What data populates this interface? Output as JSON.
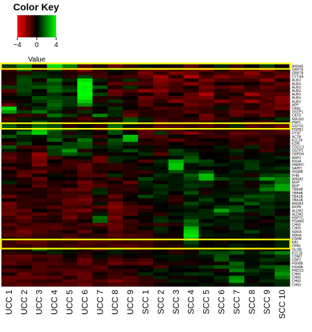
{
  "chart_data": {
    "type": "heatmap",
    "title": "",
    "color_key": {
      "title": "Color Key",
      "xlabel": "Value",
      "ticks": [
        "−4",
        "0",
        "4"
      ],
      "tick_values": [
        -4,
        0,
        4
      ],
      "low_color": "#ff0000",
      "mid_color": "#000000",
      "high_color": "#00ff00"
    },
    "columns": [
      "UCC 1",
      "UCC 2",
      "UCC 3",
      "UCC 4",
      "UCC 5",
      "UCC 6",
      "UCC 7",
      "UCC 8",
      "UCC 9",
      "SCC 1",
      "SCC 2",
      "SCC 3",
      "SCC 4",
      "SCC 5",
      "SCC 6",
      "SCC 7",
      "SCC 8",
      "SCC 9",
      "SCC 10"
    ],
    "rows": [
      "ANXA5",
      "GRP78",
      "GRP78",
      "CYTSA",
      "ALBU",
      "ALBU",
      "ALBU",
      "ALBU",
      "ALBU",
      "ALBU",
      "ALBU",
      "AFP",
      "UBA1",
      "GSTP1",
      "CATD",
      "NDUS3",
      "PRP1",
      "GSTO1",
      "HSPB1",
      "DYST",
      "ACTB",
      "K1C19",
      "EZRI",
      "COCC2",
      "GSTP1",
      "G6PDH",
      "ARP3",
      "RSSA",
      "HNRPC",
      "SAHH",
      "HS90B",
      "IF4B",
      "ANXA2",
      "MVP",
      "MVP",
      "TBB4B",
      "TBB4B",
      "TBA1B",
      "TBA1B",
      "ANXA3",
      "RFPB",
      "ALDH2",
      "ALDH2",
      "HSP7C",
      "PGAM2",
      "CH60",
      "CH60",
      "NDKA",
      "NDKA",
      "DSHB",
      "EB1",
      "OPA1",
      "GLOB",
      "K1C16",
      "COMT",
      "USP2",
      "HS90B",
      "HS90B",
      "PRDX3",
      "CH60",
      "CH60",
      "CH60",
      "CH60"
    ],
    "values": [
      [
        0.9,
        2.0,
        0.0,
        3.5,
        2.0,
        -1.2,
        -0.5,
        -1.6,
        -0.8,
        0.3,
        -0.2,
        -0.4,
        -1.4,
        -0.3,
        0.6,
        -0.9,
        0.0,
        1.0,
        -0.2
      ],
      [
        -1.2,
        1.5,
        -0.6,
        1.2,
        -1.1,
        -2.4,
        -0.5,
        0.3,
        -0.3,
        -1.3,
        -1.7,
        -0.8,
        -1.5,
        -1.9,
        -0.3,
        -1.6,
        -1.2,
        -2.4,
        -0.5
      ],
      [
        -0.4,
        -0.7,
        0.6,
        0.2,
        -0.5,
        -0.9,
        -0.9,
        -0.1,
        -0.6,
        -1.9,
        -0.8,
        -2.0,
        -1.6,
        -0.6,
        -1.0,
        -1.1,
        -2.2,
        -0.8,
        -1.3
      ],
      [
        -0.4,
        0.9,
        0.8,
        0.5,
        -0.6,
        1.0,
        -1.1,
        -0.8,
        -1.0,
        -1.4,
        -2.5,
        -0.7,
        -2.8,
        -1.1,
        -2.0,
        -1.4,
        -1.6,
        -1.1,
        -1.8
      ],
      [
        -0.5,
        1.2,
        -0.3,
        1.8,
        0.6,
        3.5,
        0.5,
        -0.6,
        0.7,
        -0.9,
        -2.2,
        -1.7,
        -0.6,
        -1.9,
        -1.1,
        -1.0,
        -0.9,
        -2.2,
        -0.4
      ],
      [
        -0.7,
        1.1,
        0.7,
        1.2,
        -0.3,
        4.0,
        -0.2,
        -1.4,
        -1.3,
        -1.2,
        -1.8,
        -1.1,
        -2.1,
        -1.2,
        -0.2,
        -0.4,
        -0.2,
        -0.8,
        -1.6
      ],
      [
        0.9,
        1.0,
        1.3,
        1.6,
        0.7,
        3.8,
        1.4,
        -0.5,
        0.7,
        -0.5,
        -1.5,
        -1.0,
        -0.4,
        -1.8,
        -1.2,
        -1.7,
        -0.7,
        -1.5,
        -1.1
      ],
      [
        -1.3,
        1.1,
        0.1,
        1.6,
        1.1,
        3.9,
        -0.1,
        -1.6,
        -1.1,
        -2.2,
        -2.0,
        -1.1,
        -0.8,
        -1.4,
        -0.6,
        -1.2,
        -1.0,
        -1.2,
        -0.8
      ],
      [
        -0.5,
        0.7,
        0.2,
        0.8,
        -0.2,
        4.0,
        1.0,
        -1.5,
        -0.6,
        -0.4,
        -1.4,
        -0.1,
        -1.5,
        -2.7,
        -0.6,
        -0.3,
        -2.5,
        -1.3,
        -1.4
      ],
      [
        0.1,
        0.1,
        1.3,
        1.0,
        0.9,
        3.8,
        -0.5,
        -0.5,
        -0.1,
        -1.7,
        -1.2,
        -1.2,
        -1.6,
        -1.8,
        -0.4,
        -1.2,
        -0.9,
        -1.3,
        -2.0
      ],
      [
        -0.5,
        -0.2,
        0.8,
        1.3,
        0.8,
        3.2,
        -0.6,
        0.8,
        -0.5,
        -1.3,
        -0.7,
        -2.0,
        -1.4,
        -1.2,
        -1.9,
        -1.3,
        -2.3,
        -1.1,
        -1.9
      ],
      [
        -1.5,
        0.4,
        0.2,
        1.6,
        0.8,
        2.2,
        0.4,
        -0.4,
        -0.2,
        -1.3,
        -0.3,
        -0.2,
        -1.7,
        -1.3,
        -0.5,
        -1.0,
        -0.5,
        -1.4,
        -1.6
      ],
      [
        3.5,
        -0.5,
        0.8,
        1.2,
        0.3,
        -0.9,
        -0.1,
        0.8,
        -0.2,
        -0.6,
        -1.2,
        -1.0,
        -1.0,
        -0.9,
        0.3,
        -1.2,
        -0.6,
        -1.2,
        -1.9
      ],
      [
        2.4,
        0.9,
        1.8,
        0.6,
        -0.4,
        0.7,
        -0.2,
        0.6,
        -1.1,
        -0.6,
        -0.6,
        -0.8,
        -1.4,
        -0.8,
        -0.7,
        -1.6,
        -1.5,
        -1.3,
        -0.4
      ],
      [
        -0.4,
        -1.0,
        -0.6,
        1.8,
        0.9,
        -0.6,
        2.1,
        0.6,
        -1.6,
        -0.5,
        -0.6,
        -0.9,
        -0.2,
        -1.7,
        -0.4,
        -1.4,
        -0.6,
        -1.6,
        -0.6
      ],
      [
        -1.2,
        0.4,
        0.3,
        0.4,
        -0.4,
        -1.3,
        -0.5,
        -0.5,
        1.2,
        0.5,
        -1.0,
        -0.7,
        -0.6,
        -1.6,
        -0.9,
        0.2,
        -0.2,
        0.2,
        0.8
      ],
      [
        -0.5,
        0.3,
        1.4,
        0.3,
        -0.5,
        -0.4,
        -0.1,
        0.4,
        1.5,
        0.2,
        -1.4,
        -0.8,
        -1.1,
        -0.7,
        -0.2,
        -0.4,
        -0.9,
        -1.3,
        0.1
      ],
      [
        1.4,
        0.5,
        1.5,
        1.2,
        -0.7,
        0.2,
        -0.7,
        1.7,
        0.3,
        -0.4,
        -1.3,
        -1.1,
        -0.7,
        -1.2,
        -0.7,
        0.7,
        -1.3,
        -0.8,
        -1.5
      ],
      [
        0.3,
        0.5,
        3.0,
        1.6,
        0.8,
        0.2,
        -0.9,
        1.5,
        -0.8,
        -1.6,
        -1.3,
        -1.3,
        -0.4,
        -0.6,
        -0.6,
        -0.5,
        -0.7,
        -1.1,
        -1.5
      ],
      [
        0.2,
        1.8,
        3.3,
        1.1,
        -0.6,
        0.4,
        -0.1,
        1.2,
        0.1,
        -1.4,
        0.7,
        -1.2,
        -2.0,
        -1.1,
        -0.6,
        -1.6,
        -1.4,
        -0.9,
        -1.1
      ],
      [
        1.3,
        0.5,
        0.3,
        1.0,
        0.7,
        0.6,
        -1.0,
        0.0,
        3.0,
        -1.2,
        -1.3,
        0.1,
        -0.4,
        -0.9,
        -1.0,
        -1.1,
        -0.8,
        -0.9,
        -0.5
      ],
      [
        -0.1,
        0.4,
        -0.2,
        1.6,
        -0.2,
        1.8,
        0.2,
        1.2,
        2.8,
        -0.4,
        -0.9,
        -1.5,
        -0.6,
        -0.1,
        -0.2,
        -0.8,
        -0.4,
        -1.3,
        -0.5
      ],
      [
        -0.8,
        1.1,
        -0.1,
        0.0,
        1.0,
        1.4,
        -0.8,
        1.0,
        0.6,
        -0.7,
        -0.8,
        -0.1,
        -0.7,
        -0.6,
        -0.2,
        -0.7,
        -0.9,
        -0.9,
        -0.5
      ],
      [
        1.4,
        -1.0,
        -1.0,
        1.2,
        1.0,
        1.2,
        0.4,
        0.7,
        -0.2,
        0.2,
        -0.4,
        0.2,
        -0.1,
        0.0,
        0.4,
        -0.7,
        0.6,
        -0.8,
        -0.3
      ],
      [
        0.4,
        -0.2,
        -0.7,
        0.9,
        2.4,
        -0.6,
        -0.1,
        0.4,
        1.2,
        0.2,
        -0.6,
        1.0,
        0.3,
        -0.3,
        0.2,
        0.7,
        -0.2,
        -1.0,
        0.3
      ],
      [
        -1.1,
        -0.6,
        -2.3,
        0.9,
        1.4,
        0.9,
        -0.4,
        -0.2,
        0.0,
        0.7,
        -1.4,
        0.8,
        0.8,
        0.0,
        -0.1,
        0.4,
        -0.1,
        0.3,
        -0.3
      ],
      [
        -1.5,
        -0.7,
        -2.0,
        -1.2,
        -0.2,
        0.2,
        -1.7,
        0.6,
        0.5,
        0.0,
        0.0,
        0.2,
        1.3,
        0.0,
        0.1,
        -0.6,
        0.1,
        0.2,
        0.6
      ],
      [
        -1.1,
        -0.7,
        -1.7,
        0.0,
        -1.0,
        -0.8,
        -1.6,
        0.6,
        0.1,
        -1.2,
        0.7,
        2.7,
        1.5,
        1.0,
        0.0,
        0.5,
        0.7,
        0.3,
        0.0
      ],
      [
        -0.2,
        -0.3,
        -1.9,
        -0.4,
        -1.0,
        -1.5,
        -0.6,
        -0.8,
        -0.5,
        0.0,
        0.4,
        3.2,
        0.3,
        0.7,
        0.5,
        0.2,
        0.9,
        0.1,
        0.3
      ],
      [
        -1.2,
        -0.4,
        -0.8,
        -0.8,
        -0.8,
        -1.5,
        -0.7,
        -0.9,
        -0.5,
        0.3,
        0.2,
        3.1,
        0.2,
        -0.1,
        -0.1,
        0.2,
        0.9,
        0.4,
        0.8
      ],
      [
        -0.2,
        -1.3,
        -1.6,
        -0.7,
        -0.3,
        -1.3,
        -0.5,
        -0.1,
        -0.6,
        -0.8,
        0.3,
        1.2,
        0.5,
        1.2,
        0.0,
        0.5,
        0.3,
        0.4,
        0.3
      ],
      [
        -0.6,
        -1.5,
        -0.3,
        0.2,
        -0.5,
        -1.3,
        -1.3,
        0.7,
        -0.6,
        -0.2,
        0.7,
        0.3,
        1.4,
        3.0,
        0.3,
        0.3,
        -0.5,
        0.9,
        1.2
      ],
      [
        -0.3,
        -0.6,
        -1.5,
        -0.1,
        0.0,
        -0.7,
        -0.3,
        -0.9,
        -0.2,
        1.1,
        0.4,
        0.4,
        1.0,
        2.8,
        1.1,
        0.6,
        0.7,
        2.4,
        1.8
      ],
      [
        0.6,
        -0.5,
        -1.0,
        -0.5,
        -0.8,
        -1.8,
        -0.8,
        -0.3,
        -1.5,
        0.5,
        -0.2,
        0.4,
        0.6,
        0.6,
        -0.2,
        0.6,
        -0.3,
        0.4,
        1.8
      ],
      [
        -0.6,
        -0.1,
        -1.4,
        -0.6,
        -0.2,
        -1.4,
        -1.3,
        -0.8,
        -0.7,
        0.4,
        0.8,
        0.3,
        0.9,
        0.7,
        -0.2,
        0.4,
        -0.3,
        1.2,
        2.6
      ],
      [
        -0.8,
        -0.8,
        -0.5,
        -0.9,
        -1.5,
        -1.6,
        0.5,
        -0.6,
        -0.9,
        0.2,
        0.5,
        0.4,
        0.5,
        -0.3,
        0.2,
        0.5,
        0.4,
        1.9,
        2.6
      ],
      [
        -0.5,
        -0.4,
        -0.5,
        -0.7,
        -1.0,
        -0.9,
        0.7,
        -0.7,
        -0.4,
        -0.2,
        0.7,
        0.0,
        1.2,
        -0.5,
        0.3,
        0.2,
        0.4,
        0.7,
        0.6
      ],
      [
        -1.7,
        -0.7,
        -0.4,
        -1.1,
        -1.0,
        -1.4,
        -0.3,
        -1.6,
        -0.2,
        1.1,
        0.4,
        -0.7,
        0.3,
        0.4,
        0.4,
        0.6,
        1.3,
        1.2,
        0.6
      ],
      [
        -0.3,
        -0.7,
        -0.9,
        -0.8,
        -1.5,
        -1.9,
        -0.7,
        -0.8,
        -0.1,
        -0.3,
        0.3,
        -0.9,
        0.2,
        1.0,
        0.0,
        1.4,
        0.6,
        0.9,
        0.5
      ],
      [
        -1.8,
        -0.8,
        -0.6,
        -0.5,
        -1.5,
        -1.4,
        0.3,
        -1.8,
        -0.7,
        -0.1,
        0.1,
        -0.4,
        1.1,
        0.4,
        0.2,
        0.2,
        1.4,
        0.5,
        0.2
      ],
      [
        -1.6,
        -0.7,
        -0.7,
        -1.3,
        -1.1,
        -0.9,
        -1.4,
        -2.1,
        -1.2,
        -1.1,
        -0.1,
        0.3,
        0.5,
        0.1,
        0.9,
        1.2,
        0.1,
        0.8,
        0.5
      ],
      [
        -1.4,
        -1.5,
        -0.1,
        -0.6,
        -1.6,
        -1.9,
        -0.4,
        -1.7,
        -1.1,
        -0.6,
        -0.1,
        0.1,
        0.2,
        0.6,
        2.6,
        1.3,
        0.5,
        0.6,
        0.0
      ],
      [
        -1.7,
        -1.0,
        -1.4,
        -0.8,
        -1.3,
        -0.8,
        0.4,
        -1.4,
        -1.3,
        0.1,
        -0.7,
        0.4,
        0.6,
        0.6,
        1.1,
        0.4,
        -0.4,
        0.6,
        -0.2
      ],
      [
        -0.9,
        -1.7,
        -0.8,
        -0.5,
        -1.8,
        -0.8,
        1.7,
        -1.9,
        -0.1,
        -0.2,
        0.6,
        -0.1,
        0.8,
        0.6,
        0.2,
        0.6,
        0.3,
        0.0,
        0.7
      ],
      [
        -0.7,
        -1.2,
        -0.5,
        -0.4,
        -0.9,
        -0.2,
        1.5,
        -1.3,
        -1.0,
        -0.2,
        0.8,
        0.4,
        1.6,
        0.0,
        0.4,
        0.3,
        0.0,
        -0.5,
        0.4
      ],
      [
        -1.4,
        -0.8,
        -1.1,
        -1.2,
        -0.6,
        -1.1,
        -1.4,
        -1.6,
        -0.7,
        -0.6,
        -0.8,
        -0.6,
        1.4,
        0.7,
        0.3,
        0.6,
        -0.3,
        0.0,
        0.8
      ],
      [
        -0.7,
        -1.3,
        -1.2,
        -1.3,
        -1.1,
        -0.7,
        -0.5,
        -1.6,
        -0.9,
        0.1,
        0.6,
        0.0,
        2.8,
        0.1,
        -0.3,
        0.6,
        -0.2,
        0.2,
        0.7
      ],
      [
        -1.1,
        -1.9,
        -1.2,
        -0.8,
        -0.3,
        -1.5,
        0.0,
        -1.2,
        -0.6,
        -0.8,
        0.5,
        -0.2,
        3.3,
        0.3,
        0.0,
        0.2,
        1.0,
        0.2,
        0.5
      ],
      [
        -1.2,
        -1.4,
        -0.9,
        -0.8,
        -1.0,
        -0.5,
        -0.8,
        -1.4,
        -1.2,
        -1.0,
        -0.3,
        -0.4,
        3.6,
        0.4,
        0.3,
        0.2,
        0.2,
        -0.2,
        0.4
      ],
      [
        -0.5,
        -1.0,
        -0.7,
        -0.6,
        -1.5,
        -1.1,
        -0.8,
        -1.1,
        -0.8,
        -0.9,
        -0.6,
        -0.4,
        3.2,
        0.2,
        0.1,
        0.2,
        0.5,
        -0.3,
        0.8
      ],
      [
        -0.9,
        -1.5,
        -1.5,
        -0.9,
        -0.8,
        -1.3,
        -1.2,
        -1.0,
        -0.9,
        -0.9,
        -0.6,
        -0.3,
        1.1,
        0.0,
        -0.3,
        0.1,
        -0.1,
        -0.1,
        0.5
      ],
      [
        -1.0,
        -0.8,
        -1.2,
        -0.7,
        -1.0,
        -1.1,
        -0.8,
        -1.2,
        -1.4,
        -1.0,
        -0.5,
        -0.6,
        0.6,
        -0.1,
        0.2,
        0.5,
        0.3,
        0.2,
        0.6
      ],
      [
        -0.5,
        -0.2,
        1.3,
        0.5,
        0.3,
        -0.2,
        -1.1,
        0.5,
        -0.8,
        -0.4,
        -0.2,
        -0.8,
        -0.2,
        0.5,
        0.3,
        0.7,
        -0.5,
        -0.4,
        0.1
      ],
      [
        -0.7,
        -0.6,
        -0.4,
        0.5,
        0.2,
        -0.6,
        -0.1,
        0.4,
        0.2,
        -0.3,
        0.0,
        -0.7,
        -0.3,
        1.0,
        1.0,
        1.4,
        0.3,
        1.1,
        2.0
      ],
      [
        -1.4,
        -1.6,
        -1.1,
        -1.2,
        -0.2,
        -1.0,
        0.2,
        -0.6,
        -0.1,
        -0.3,
        0.3,
        0.4,
        0.2,
        0.3,
        1.3,
        0.1,
        0.2,
        0.2,
        0.8
      ],
      [
        -1.2,
        -1.3,
        -0.7,
        -1.0,
        -0.4,
        -1.6,
        -0.6,
        -1.2,
        -0.6,
        -1.1,
        -0.1,
        0.3,
        -0.3,
        0.1,
        1.4,
        0.3,
        0.2,
        0.8,
        0.6
      ],
      [
        -1.5,
        -1.0,
        -1.2,
        -1.2,
        -0.8,
        -1.6,
        -0.7,
        -1.7,
        -1.2,
        -1.5,
        -0.4,
        -0.5,
        -0.5,
        -0.2,
        -0.3,
        1.6,
        0.1,
        0.4,
        0.1
      ],
      [
        -0.4,
        -0.2,
        -1.2,
        -0.8,
        -0.9,
        -0.9,
        -1.4,
        -0.3,
        -0.2,
        -0.3,
        -1.1,
        0.1,
        0.3,
        0.8,
        1.4,
        1.2,
        0.3,
        1.3,
        1.6
      ],
      [
        -1.3,
        -0.9,
        -1.2,
        -1.1,
        -1.3,
        -1.2,
        -1.1,
        -0.8,
        -0.8,
        0.0,
        0.6,
        0.0,
        0.0,
        0.2,
        -0.4,
        1.9,
        0.9,
        0.4,
        1.8
      ],
      [
        -0.4,
        -1.6,
        -1.0,
        -0.6,
        -1.4,
        -1.6,
        -0.3,
        -1.0,
        -0.5,
        0.6,
        0.1,
        0.3,
        0.8,
        0.7,
        0.0,
        0.2,
        0.5,
        0.2,
        2.3
      ],
      [
        -1.6,
        -1.6,
        -1.5,
        -1.3,
        -0.6,
        -1.6,
        -0.6,
        -1.0,
        -1.3,
        -0.7,
        0.5,
        -0.2,
        -0.3,
        0.1,
        0.7,
        2.2,
        0.1,
        0.3,
        1.7
      ],
      [
        -1.4,
        -1.0,
        -0.8,
        -0.7,
        -1.4,
        -1.3,
        -1.2,
        -1.9,
        -1.3,
        -0.8,
        -0.6,
        0.5,
        0.3,
        0.0,
        0.4,
        2.5,
        -0.2,
        0.6,
        0.7
      ],
      [
        -1.1,
        -1.4,
        -1.0,
        -1.3,
        -1.2,
        -1.6,
        -0.8,
        -1.1,
        -1.1,
        -0.8,
        -0.3,
        -0.1,
        0.0,
        0.3,
        -0.2,
        0.6,
        0.3,
        0.1,
        0.6
      ]
    ],
    "highlighted_row_groups": [
      [
        0,
        0
      ],
      [
        17,
        17
      ],
      [
        50,
        51
      ]
    ],
    "highlight_color": "#ffff00",
    "grid": false
  }
}
